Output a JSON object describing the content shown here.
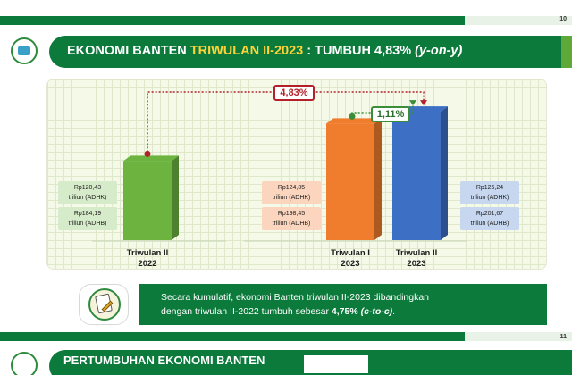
{
  "slide": {
    "page_number": "10",
    "next_page_number": "11",
    "colors": {
      "brand_green": "#0b7a3b",
      "title_accent": "#ffd43b",
      "bar_green": "#6db33f",
      "bar_orange": "#ef7d2d",
      "bar_blue": "#3d6fc4",
      "growth_red": "#b3202a"
    }
  },
  "header": {
    "title_prefix": "EKONOMI BANTEN",
    "title_highlight": "TRIWULAN II-2023",
    "title_suffix": ": TUMBUH 4,83%",
    "title_italic": "(y-on-y)",
    "logo_icon": "bps-logo-icon"
  },
  "chart_data": {
    "type": "bar",
    "categories": [
      "Triwulan II 2022",
      "Triwulan I 2023",
      "Triwulan II 2023"
    ],
    "series": [
      {
        "values": [
          120.43,
          124.85,
          126.24
        ]
      }
    ],
    "unit": "Rp triliun (ADHK)",
    "adhb_values": [
      184.19,
      198.45,
      201.67
    ],
    "growth_annotations": [
      {
        "from": "Triwulan II 2022",
        "to": "Triwulan II 2023",
        "label": "4,83%"
      },
      {
        "from": "Triwulan I 2023",
        "to": "Triwulan II 2023",
        "label": "1,11%"
      }
    ],
    "bar_colors": [
      "#6db33f",
      "#ef7d2d",
      "#3d6fc4"
    ],
    "grid": true,
    "axes_shown": false
  },
  "chart_labels": {
    "bars": [
      {
        "line1": "Triwulan II",
        "line2": "2022"
      },
      {
        "line1": "Triwulan I",
        "line2": "2023"
      },
      {
        "line1": "Triwulan II",
        "line2": "2023"
      }
    ],
    "boxes": [
      {
        "adhk_value": "Rp120,43",
        "adhk_unit": "triliun (ADHK)",
        "adhb_value": "Rp184,19",
        "adhb_unit": "triliun (ADHB)"
      },
      {
        "adhk_value": "Rp124,85",
        "adhk_unit": "triliun (ADHK)",
        "adhb_value": "Rp198,45",
        "adhb_unit": "triliun (ADHB)"
      },
      {
        "adhk_value": "Rp126,24",
        "adhk_unit": "triliun (ADHK)",
        "adhb_value": "Rp201,67",
        "adhb_unit": "triliun (ADHB)"
      }
    ],
    "badge_yoy": "4,83%",
    "badge_qtq": "1,11%"
  },
  "summary": {
    "icon": "notepad-pencil-icon",
    "line1": "Secara kumulatif, ekonomi Banten triwulan II-2023 dibandingkan",
    "line2_start": "dengan triwulan II-2022  tumbuh sebesar",
    "line2_value": "4,75%",
    "line2_italic": "(c-to-c)",
    "line2_end": "."
  },
  "next_slide": {
    "title": "PERTUMBUHAN EKONOMI BANTEN"
  }
}
